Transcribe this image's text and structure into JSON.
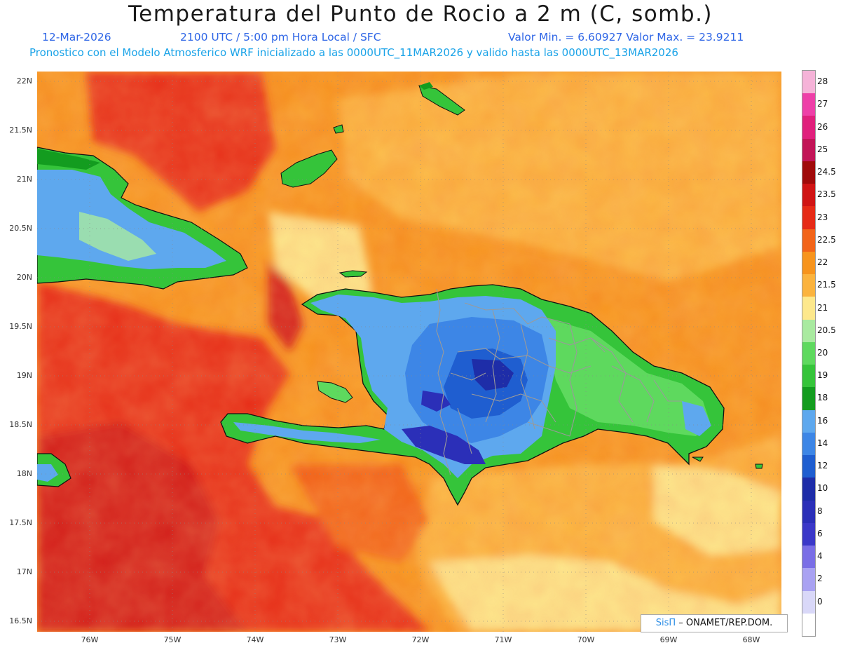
{
  "title": "Temperatura del Punto de Rocio a 2 m (C, somb.)",
  "date": "12-Mar-2026",
  "time": "2100 UTC / 5:00 pm Hora Local / SFC",
  "min_max": "Valor Min. = 6.60927  Valor Max. = 23.9211",
  "model_info": "Pronostico con el Modelo Atmosferico WRF inicializado a las 0000UTC_11MAR2026 y valido hasta las  0000UTC_13MAR2026",
  "credit_brand": "SisΠ",
  "credit_org": "– ONAMET/REP.DOM.",
  "lat_labels": [
    "22N",
    "21.5N",
    "21N",
    "20.5N",
    "20N",
    "19.5N",
    "19N",
    "18.5N",
    "18N",
    "17.5N",
    "17N",
    "16.5N"
  ],
  "lon_labels": [
    "76W",
    "75W",
    "74W",
    "73W",
    "72W",
    "71W",
    "70W",
    "69W",
    "68W"
  ],
  "legend": [
    {
      "label": "28",
      "color": "#f5b3d8"
    },
    {
      "label": "27",
      "color": "#ee3fa8"
    },
    {
      "label": "26",
      "color": "#e01f7c"
    },
    {
      "label": "25",
      "color": "#c21457"
    },
    {
      "label": "24.5",
      "color": "#a00a0a"
    },
    {
      "label": "23.5",
      "color": "#d01414"
    },
    {
      "label": "23",
      "color": "#e62a16"
    },
    {
      "label": "22.5",
      "color": "#f26419"
    },
    {
      "label": "22",
      "color": "#f7941d"
    },
    {
      "label": "21.5",
      "color": "#fbb33e"
    },
    {
      "label": "21",
      "color": "#fde88c"
    },
    {
      "label": "20.5",
      "color": "#a9eaa0"
    },
    {
      "label": "20",
      "color": "#5ed95e"
    },
    {
      "label": "19",
      "color": "#35c43a"
    },
    {
      "label": "18",
      "color": "#139c1f"
    },
    {
      "label": "16",
      "color": "#5ea8ee"
    },
    {
      "label": "14",
      "color": "#3d86e6"
    },
    {
      "label": "12",
      "color": "#1f5ed0"
    },
    {
      "label": "10",
      "color": "#1e2da8"
    },
    {
      "label": "8",
      "color": "#2b2fb8"
    },
    {
      "label": "6",
      "color": "#3b38c8"
    },
    {
      "label": "4",
      "color": "#7a6ee6"
    },
    {
      "label": "2",
      "color": "#a9a2f2"
    },
    {
      "label": "0",
      "color": "#d9d8f8"
    },
    {
      "label": "",
      "color": "#ffffff"
    }
  ]
}
